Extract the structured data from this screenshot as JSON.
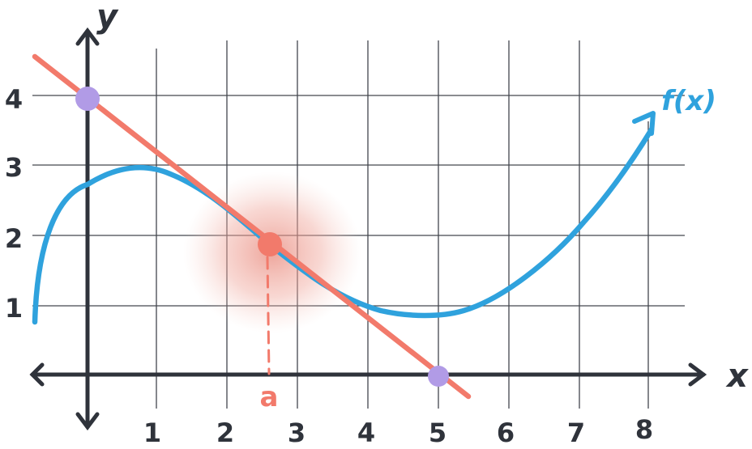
{
  "diagram": {
    "axis_labels": {
      "x": "x",
      "y": "y"
    },
    "function_label": "f(x)",
    "tangent_point_label": "a",
    "x_ticks": [
      "1",
      "2",
      "3",
      "4",
      "5",
      "6",
      "7",
      "8"
    ],
    "y_ticks": [
      "1",
      "2",
      "3",
      "4"
    ],
    "colors": {
      "grid": "#2f333b",
      "axis": "#2f333b",
      "curve": "#2fa2dd",
      "tangent": "#f27a6b",
      "tangent_point": "#f27a6b",
      "intercepts": "#b19be6"
    }
  }
}
